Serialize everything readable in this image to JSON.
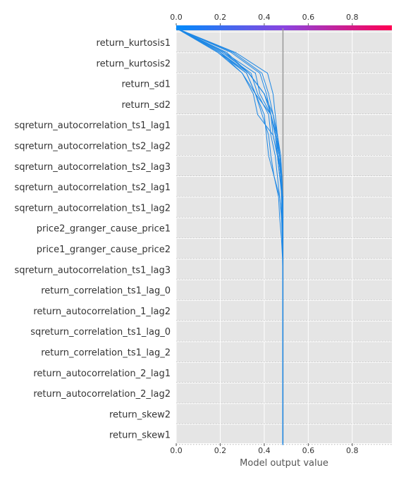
{
  "chart_data": {
    "type": "line",
    "title": "",
    "xlabel": "Model output value",
    "ylabel": "",
    "xlim": [
      0.0,
      0.98
    ],
    "x_ticks": [
      "0.0",
      "0.2",
      "0.4",
      "0.6",
      "0.8"
    ],
    "x_tick_values": [
      0.0,
      0.2,
      0.4,
      0.6,
      0.8
    ],
    "base_value": 0.485,
    "colorbar": {
      "low_color": "#008bfb",
      "mid_color": "#8a44e0",
      "high_color": "#ff0052"
    },
    "line_color": "#1e88e5",
    "background_color": "#e5e5e5",
    "features": [
      "return_kurtosis1",
      "return_kurtosis2",
      "return_sd1",
      "return_sd2",
      "sqreturn_autocorrelation_ts1_lag1",
      "sqreturn_autocorrelation_ts2_lag2",
      "sqreturn_autocorrelation_ts2_lag3",
      "sqreturn_autocorrelation_ts2_lag1",
      "sqreturn_autocorrelation_ts1_lag2",
      "price2_granger_cause_price1",
      "price1_granger_cause_price2",
      "sqreturn_autocorrelation_ts1_lag3",
      "return_correlation_ts1_lag_0",
      "return_autocorrelation_1_lag2",
      "sqreturn_correlation_ts1_lag_0",
      "return_correlation_ts1_lag_2",
      "return_autocorrelation_2_lag1",
      "return_autocorrelation_2_lag2",
      "return_skew2",
      "return_skew1"
    ],
    "series": [
      {
        "values": [
          0.485,
          0.485,
          0.485,
          0.485,
          0.485,
          0.485,
          0.485,
          0.485,
          0.485,
          0.485,
          0.485,
          0.485,
          0.485,
          0.48,
          0.475,
          0.47,
          0.46,
          0.45,
          0.44,
          0.415,
          0.27,
          0.0
        ]
      },
      {
        "values": [
          0.485,
          0.485,
          0.485,
          0.485,
          0.485,
          0.485,
          0.485,
          0.485,
          0.485,
          0.485,
          0.485,
          0.484,
          0.483,
          0.482,
          0.48,
          0.47,
          0.455,
          0.44,
          0.42,
          0.39,
          0.26,
          0.0
        ]
      },
      {
        "values": [
          0.485,
          0.485,
          0.485,
          0.485,
          0.485,
          0.485,
          0.485,
          0.485,
          0.485,
          0.485,
          0.484,
          0.482,
          0.48,
          0.478,
          0.475,
          0.465,
          0.45,
          0.43,
          0.41,
          0.38,
          0.25,
          0.0
        ]
      },
      {
        "values": [
          0.485,
          0.485,
          0.485,
          0.485,
          0.485,
          0.485,
          0.485,
          0.485,
          0.485,
          0.485,
          0.485,
          0.485,
          0.484,
          0.482,
          0.478,
          0.47,
          0.46,
          0.44,
          0.4,
          0.33,
          0.23,
          0.0
        ]
      },
      {
        "values": [
          0.485,
          0.485,
          0.485,
          0.485,
          0.485,
          0.485,
          0.485,
          0.485,
          0.485,
          0.485,
          0.485,
          0.485,
          0.485,
          0.483,
          0.48,
          0.475,
          0.46,
          0.44,
          0.4,
          0.33,
          0.22,
          0.0
        ]
      },
      {
        "values": [
          0.485,
          0.485,
          0.485,
          0.485,
          0.485,
          0.485,
          0.485,
          0.485,
          0.485,
          0.485,
          0.485,
          0.485,
          0.485,
          0.48,
          0.47,
          0.46,
          0.44,
          0.43,
          0.38,
          0.36,
          0.22,
          0.0
        ]
      },
      {
        "values": [
          0.485,
          0.485,
          0.485,
          0.485,
          0.485,
          0.485,
          0.485,
          0.485,
          0.485,
          0.485,
          0.484,
          0.482,
          0.478,
          0.47,
          0.46,
          0.45,
          0.43,
          0.42,
          0.37,
          0.34,
          0.21,
          0.0
        ]
      },
      {
        "values": [
          0.485,
          0.485,
          0.485,
          0.485,
          0.485,
          0.485,
          0.485,
          0.485,
          0.485,
          0.485,
          0.485,
          0.484,
          0.483,
          0.48,
          0.475,
          0.465,
          0.455,
          0.43,
          0.36,
          0.32,
          0.2,
          0.0
        ]
      },
      {
        "values": [
          0.485,
          0.485,
          0.485,
          0.485,
          0.485,
          0.485,
          0.485,
          0.485,
          0.485,
          0.485,
          0.485,
          0.485,
          0.485,
          0.485,
          0.47,
          0.46,
          0.45,
          0.43,
          0.4,
          0.33,
          0.2,
          0.0
        ]
      },
      {
        "values": [
          0.485,
          0.485,
          0.485,
          0.485,
          0.485,
          0.485,
          0.485,
          0.485,
          0.485,
          0.485,
          0.485,
          0.484,
          0.48,
          0.47,
          0.445,
          0.43,
          0.42,
          0.39,
          0.36,
          0.32,
          0.19,
          0.0
        ]
      },
      {
        "values": [
          0.485,
          0.485,
          0.485,
          0.485,
          0.485,
          0.485,
          0.485,
          0.485,
          0.485,
          0.485,
          0.483,
          0.478,
          0.47,
          0.465,
          0.445,
          0.42,
          0.41,
          0.4,
          0.36,
          0.3,
          0.2,
          0.0
        ]
      },
      {
        "values": [
          0.485,
          0.485,
          0.485,
          0.485,
          0.485,
          0.485,
          0.485,
          0.485,
          0.485,
          0.485,
          0.485,
          0.485,
          0.485,
          0.484,
          0.48,
          0.46,
          0.44,
          0.37,
          0.35,
          0.3,
          0.19,
          0.0
        ]
      }
    ]
  }
}
